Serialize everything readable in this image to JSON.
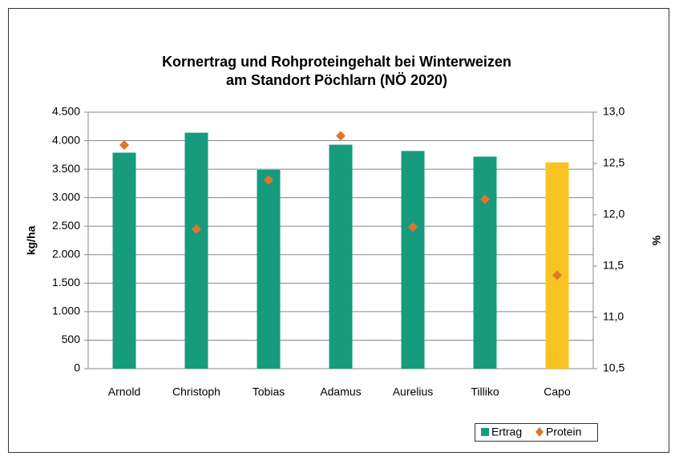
{
  "chart_data": {
    "type": "bar",
    "title": [
      "Kornertrag und Rohproteingehalt bei Winterweizen",
      "am Standort Pöchlarn (NÖ 2020)"
    ],
    "categories": [
      "Arnold",
      "Christoph",
      "Tobias",
      "Adamus",
      "Aurelius",
      "Tilliko",
      "Capo"
    ],
    "series": [
      {
        "name": "Ertrag",
        "type": "bar",
        "color": "#169b7c",
        "colors": [
          "#169b7c",
          "#169b7c",
          "#169b7c",
          "#169b7c",
          "#169b7c",
          "#169b7c",
          "#f9c423"
        ],
        "values": [
          3790,
          4140,
          3490,
          3930,
          3820,
          3720,
          3620
        ]
      },
      {
        "name": "Protein",
        "type": "scatter",
        "axis": "y2",
        "color": "#e3742b",
        "values": [
          12.68,
          11.86,
          12.34,
          12.77,
          11.88,
          12.15,
          11.41
        ]
      }
    ],
    "ylabel": "kg/ha",
    "y2label": "%",
    "ylim": [
      0,
      4500
    ],
    "yticks": [
      0,
      500,
      {
        "value": 1000,
        "label": "1.000"
      },
      {
        "value": 1500,
        "label": "1.500"
      },
      {
        "value": 2000,
        "label": "2.000"
      },
      {
        "value": 2500,
        "label": "2.500"
      },
      {
        "value": 3000,
        "label": "3.000"
      },
      {
        "value": 3500,
        "label": "3.500"
      },
      {
        "value": 4000,
        "label": "4.000"
      },
      {
        "value": 4500,
        "label": "4.500"
      }
    ],
    "y2lim": [
      10.5,
      13.0
    ],
    "y2ticks": [
      {
        "value": 10.5,
        "label": "10,5"
      },
      {
        "value": 11.0,
        "label": "11,0"
      },
      {
        "value": 11.5,
        "label": "11,5"
      },
      {
        "value": 12.0,
        "label": "12,0"
      },
      {
        "value": 12.5,
        "label": "12,5"
      },
      {
        "value": 13.0,
        "label": "13,0"
      }
    ],
    "grid": true,
    "legend": "bottom-right"
  }
}
